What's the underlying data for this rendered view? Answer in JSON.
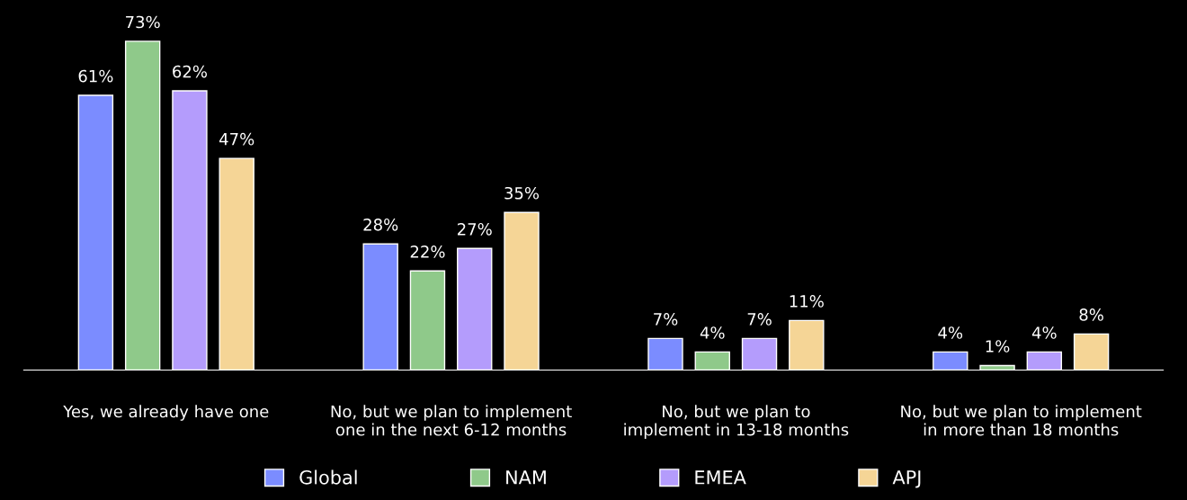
{
  "chart_data": {
    "type": "bar",
    "categories": [
      "Yes, we already have one",
      "No, but we plan to implement\none in the next 6-12 months",
      "No, but we plan to\nimplement in 13-18 months",
      "No, but we plan to implement\nin more than 18 months"
    ],
    "series": [
      {
        "name": "Global",
        "color": "#7b8cff",
        "values": [
          61,
          28,
          7,
          4
        ],
        "value_labels": [
          "61%",
          "28%",
          "7%",
          "4%"
        ]
      },
      {
        "name": "NAM",
        "color": "#8fc98a",
        "values": [
          73,
          22,
          4,
          1
        ],
        "value_labels": [
          "73%",
          "22%",
          "4%",
          "1%"
        ]
      },
      {
        "name": "EMEA",
        "color": "#b49cfc",
        "values": [
          62,
          27,
          7,
          4
        ],
        "value_labels": [
          "62%",
          "27%",
          "7%",
          "4%"
        ]
      },
      {
        "name": "APJ",
        "color": "#f5d596",
        "values": [
          47,
          35,
          11,
          8
        ],
        "value_labels": [
          "47%",
          "35%",
          "11%",
          "8%"
        ]
      }
    ],
    "grid": false,
    "legend": "bottom"
  }
}
